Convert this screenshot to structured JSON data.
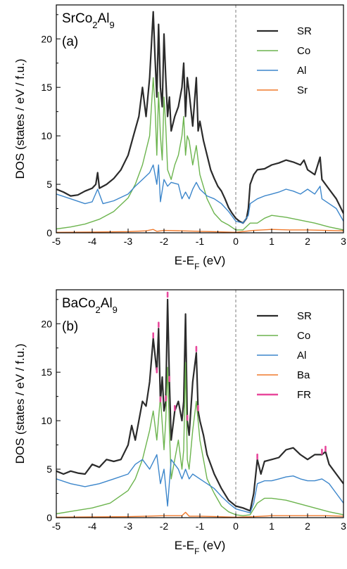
{
  "chart_data": [
    {
      "type": "line",
      "panel_label": "(a)",
      "compound": {
        "pre": "SrCo",
        "sub1": "2",
        "mid": "Al",
        "sub2": "9"
      },
      "xlabel": {
        "pre": "E-E",
        "sub": "F",
        "post": " (eV)"
      },
      "ylabel": "DOS (states / eV / f.u.)",
      "xlim": [
        -5,
        3
      ],
      "ylim": [
        0,
        23.5
      ],
      "xticks": [
        -5,
        -4,
        -3,
        -2,
        -1,
        0,
        1,
        2,
        3
      ],
      "yticks": [
        0,
        5,
        10,
        15,
        20
      ],
      "fermi_line_x": 0,
      "legend_position": "top-right",
      "series": [
        {
          "name": "SR",
          "color": "#2b2b2b",
          "width": 2.2,
          "x": [
            -5.0,
            -4.8,
            -4.6,
            -4.4,
            -4.2,
            -4.0,
            -3.9,
            -3.85,
            -3.8,
            -3.6,
            -3.4,
            -3.2,
            -3.0,
            -2.85,
            -2.7,
            -2.6,
            -2.5,
            -2.4,
            -2.3,
            -2.25,
            -2.2,
            -2.15,
            -2.1,
            -2.05,
            -2.0,
            -1.95,
            -1.9,
            -1.85,
            -1.8,
            -1.7,
            -1.6,
            -1.5,
            -1.45,
            -1.4,
            -1.35,
            -1.3,
            -1.2,
            -1.1,
            -1.05,
            -1.0,
            -0.9,
            -0.8,
            -0.7,
            -0.6,
            -0.5,
            -0.4,
            -0.3,
            -0.2,
            -0.1,
            0.0,
            0.1,
            0.2,
            0.3,
            0.35,
            0.4,
            0.5,
            0.6,
            0.8,
            1.0,
            1.2,
            1.4,
            1.6,
            1.8,
            1.9,
            2.0,
            2.2,
            2.35,
            2.4,
            2.6,
            2.8,
            3.0
          ],
          "y": [
            4.5,
            4.2,
            3.8,
            3.9,
            4.3,
            4.6,
            5.0,
            6.2,
            4.6,
            5.0,
            5.6,
            6.5,
            8.0,
            10.0,
            12.0,
            15.0,
            12.0,
            16.0,
            22.8,
            18.0,
            14.0,
            21.5,
            15.0,
            13.0,
            20.5,
            16.0,
            12.0,
            14.0,
            10.5,
            12.0,
            13.0,
            15.0,
            17.5,
            12.0,
            16.0,
            14.5,
            11.0,
            16.0,
            10.5,
            11.5,
            9.5,
            8.0,
            6.5,
            5.6,
            4.8,
            4.3,
            3.5,
            2.6,
            2.0,
            1.5,
            1.2,
            1.0,
            1.5,
            2.5,
            5.0,
            6.0,
            6.5,
            6.6,
            7.0,
            7.2,
            7.5,
            7.3,
            7.0,
            7.5,
            6.5,
            6.0,
            7.8,
            5.5,
            4.5,
            3.5,
            2.0
          ]
        },
        {
          "name": "Co",
          "color": "#6cb44e",
          "width": 1.4,
          "x": [
            -5.0,
            -4.6,
            -4.2,
            -3.8,
            -3.4,
            -3.0,
            -2.8,
            -2.6,
            -2.4,
            -2.3,
            -2.25,
            -2.2,
            -2.15,
            -2.1,
            -2.05,
            -2.0,
            -1.95,
            -1.9,
            -1.8,
            -1.7,
            -1.6,
            -1.5,
            -1.45,
            -1.4,
            -1.35,
            -1.3,
            -1.2,
            -1.1,
            -1.0,
            -0.8,
            -0.6,
            -0.4,
            -0.2,
            0.0,
            0.2,
            0.4,
            0.6,
            0.8,
            1.0,
            1.4,
            1.8,
            2.2,
            2.6,
            3.0
          ],
          "y": [
            0.4,
            0.6,
            0.9,
            1.4,
            2.2,
            3.6,
            5.0,
            7.0,
            10.0,
            16.0,
            13.0,
            8.0,
            14.5,
            10.0,
            7.5,
            14.0,
            11.0,
            6.5,
            5.5,
            7.0,
            8.0,
            10.0,
            12.0,
            8.0,
            10.0,
            9.5,
            7.0,
            9.0,
            6.0,
            3.5,
            2.0,
            1.2,
            0.8,
            0.3,
            0.3,
            1.0,
            1.0,
            1.5,
            1.8,
            1.6,
            1.3,
            1.0,
            0.6,
            0.3
          ]
        },
        {
          "name": "Al",
          "color": "#3c86cb",
          "width": 1.4,
          "x": [
            -5.0,
            -4.6,
            -4.2,
            -4.0,
            -3.85,
            -3.7,
            -3.4,
            -3.0,
            -2.8,
            -2.6,
            -2.4,
            -2.3,
            -2.2,
            -2.15,
            -2.1,
            -2.0,
            -1.9,
            -1.8,
            -1.6,
            -1.5,
            -1.4,
            -1.3,
            -1.2,
            -1.1,
            -1.0,
            -0.8,
            -0.6,
            -0.4,
            -0.2,
            0.0,
            0.2,
            0.35,
            0.4,
            0.6,
            0.8,
            1.0,
            1.2,
            1.4,
            1.6,
            1.8,
            2.0,
            2.2,
            2.35,
            2.4,
            2.6,
            2.8,
            3.0
          ],
          "y": [
            4.0,
            3.5,
            3.0,
            3.2,
            4.5,
            3.0,
            3.3,
            4.0,
            4.8,
            5.5,
            6.2,
            7.0,
            5.0,
            7.0,
            3.2,
            5.5,
            4.8,
            5.2,
            5.0,
            3.5,
            4.2,
            3.5,
            4.5,
            5.2,
            4.5,
            3.8,
            3.5,
            3.0,
            2.2,
            1.2,
            1.0,
            1.8,
            3.0,
            3.5,
            3.8,
            4.0,
            4.2,
            4.5,
            4.3,
            4.0,
            4.5,
            4.0,
            4.8,
            3.5,
            3.0,
            2.5,
            1.2
          ]
        },
        {
          "name": "Sr",
          "color": "#f07a2c",
          "width": 1.4,
          "x": [
            -5.0,
            -4.0,
            -3.0,
            -2.5,
            -2.3,
            -2.2,
            -2.0,
            -1.5,
            -1.0,
            -0.5,
            0.0,
            0.5,
            1.0,
            1.5,
            2.0,
            2.5,
            3.0
          ],
          "y": [
            0.05,
            0.08,
            0.12,
            0.2,
            0.35,
            0.15,
            0.25,
            0.2,
            0.15,
            0.1,
            0.05,
            0.25,
            0.35,
            0.3,
            0.3,
            0.25,
            0.2
          ]
        }
      ]
    },
    {
      "type": "line",
      "panel_label": "(b)",
      "compound": {
        "pre": "BaCo",
        "sub1": "2",
        "mid": "Al",
        "sub2": "9"
      },
      "xlabel": {
        "pre": "E-E",
        "sub": "F",
        "post": " (eV)"
      },
      "ylabel": "DOS (states / eV / f.u.)",
      "xlim": [
        -5,
        3
      ],
      "ylim": [
        0,
        23.5
      ],
      "xticks": [
        -5,
        -4,
        -3,
        -2,
        -1,
        0,
        1,
        2,
        3
      ],
      "yticks": [
        0,
        5,
        10,
        15,
        20
      ],
      "fermi_line_x": 0,
      "legend_position": "top-right",
      "series": [
        {
          "name": "SR",
          "color": "#2b2b2b",
          "width": 2.2,
          "x": [
            -5.0,
            -4.8,
            -4.6,
            -4.4,
            -4.2,
            -4.0,
            -3.8,
            -3.6,
            -3.4,
            -3.2,
            -3.0,
            -2.9,
            -2.8,
            -2.7,
            -2.6,
            -2.5,
            -2.4,
            -2.3,
            -2.2,
            -2.15,
            -2.1,
            -2.05,
            -2.0,
            -1.95,
            -1.9,
            -1.85,
            -1.8,
            -1.7,
            -1.6,
            -1.5,
            -1.45,
            -1.4,
            -1.35,
            -1.3,
            -1.2,
            -1.1,
            -1.05,
            -1.0,
            -0.9,
            -0.8,
            -0.6,
            -0.4,
            -0.2,
            0.0,
            0.2,
            0.4,
            0.5,
            0.6,
            0.7,
            0.8,
            1.0,
            1.2,
            1.4,
            1.6,
            1.8,
            2.0,
            2.2,
            2.4,
            2.5,
            2.6,
            2.8,
            3.0
          ],
          "y": [
            4.8,
            4.5,
            4.8,
            4.6,
            4.5,
            5.5,
            5.2,
            6.0,
            5.8,
            6.0,
            7.5,
            9.5,
            8.0,
            10.0,
            12.0,
            11.5,
            14.0,
            18.5,
            15.0,
            19.5,
            12.0,
            14.5,
            11.0,
            12.0,
            22.5,
            14.0,
            8.0,
            11.0,
            12.0,
            10.0,
            12.0,
            21.0,
            10.0,
            8.5,
            14.0,
            17.0,
            11.0,
            10.0,
            8.5,
            6.5,
            4.5,
            3.0,
            1.8,
            1.2,
            1.0,
            0.7,
            2.5,
            6.0,
            4.5,
            5.8,
            6.0,
            6.2,
            7.0,
            7.2,
            6.5,
            6.0,
            6.5,
            6.5,
            6.8,
            5.5,
            4.5,
            3.5
          ]
        },
        {
          "name": "Co",
          "color": "#6cb44e",
          "width": 1.4,
          "x": [
            -5.0,
            -4.5,
            -4.0,
            -3.5,
            -3.0,
            -2.8,
            -2.6,
            -2.4,
            -2.3,
            -2.2,
            -2.1,
            -2.0,
            -1.95,
            -1.9,
            -1.85,
            -1.8,
            -1.7,
            -1.6,
            -1.5,
            -1.45,
            -1.4,
            -1.35,
            -1.3,
            -1.2,
            -1.1,
            -1.0,
            -0.8,
            -0.6,
            -0.4,
            -0.2,
            0.0,
            0.2,
            0.4,
            0.6,
            0.8,
            1.0,
            1.4,
            1.8,
            2.2,
            2.6,
            3.0
          ],
          "y": [
            0.4,
            0.7,
            1.0,
            1.5,
            2.8,
            4.0,
            6.0,
            9.0,
            11.0,
            8.0,
            12.5,
            7.0,
            10.0,
            15.5,
            9.0,
            4.0,
            6.0,
            8.0,
            5.0,
            7.0,
            16.0,
            6.0,
            5.0,
            9.0,
            12.0,
            8.0,
            4.0,
            2.5,
            1.2,
            0.6,
            0.3,
            0.2,
            0.3,
            1.5,
            2.0,
            2.0,
            1.8,
            1.4,
            1.0,
            0.6,
            0.3
          ]
        },
        {
          "name": "Al",
          "color": "#3c86cb",
          "width": 1.4,
          "x": [
            -5.0,
            -4.6,
            -4.2,
            -3.8,
            -3.4,
            -3.0,
            -2.8,
            -2.6,
            -2.4,
            -2.2,
            -2.1,
            -2.0,
            -1.9,
            -1.8,
            -1.6,
            -1.5,
            -1.4,
            -1.3,
            -1.2,
            -1.0,
            -0.8,
            -0.6,
            -0.4,
            -0.2,
            0.0,
            0.2,
            0.4,
            0.5,
            0.6,
            0.8,
            1.0,
            1.2,
            1.4,
            1.6,
            1.8,
            2.0,
            2.2,
            2.4,
            2.6,
            2.8,
            3.0
          ],
          "y": [
            4.0,
            3.5,
            3.2,
            3.5,
            4.0,
            4.5,
            5.5,
            6.0,
            5.0,
            6.5,
            3.5,
            5.0,
            1.2,
            6.0,
            5.0,
            4.0,
            5.0,
            4.0,
            4.5,
            4.0,
            3.5,
            3.0,
            2.2,
            1.5,
            0.9,
            0.7,
            0.5,
            1.5,
            3.5,
            3.8,
            3.8,
            4.0,
            4.2,
            4.3,
            4.0,
            3.8,
            3.8,
            4.0,
            3.5,
            2.5,
            1.5
          ]
        },
        {
          "name": "Ba",
          "color": "#f07a2c",
          "width": 1.4,
          "x": [
            -5.0,
            -4.0,
            -3.0,
            -2.5,
            -2.0,
            -1.5,
            -1.4,
            -1.3,
            -1.0,
            -0.5,
            0.0,
            0.5,
            1.0,
            1.5,
            2.0,
            2.5,
            3.0
          ],
          "y": [
            0.05,
            0.08,
            0.1,
            0.15,
            0.2,
            0.2,
            0.55,
            0.15,
            0.15,
            0.1,
            0.05,
            0.1,
            0.2,
            0.2,
            0.2,
            0.2,
            0.15
          ]
        },
        {
          "name": "FR",
          "color": "#e8489c",
          "width": 2.4,
          "x": [
            -2.3,
            -2.2,
            -2.15,
            -2.1,
            -1.95,
            -1.9,
            -1.85,
            -1.7,
            -1.35,
            -1.1,
            -1.05,
            0.6,
            2.4,
            2.5
          ],
          "y": [
            18.8,
            15.2,
            19.9,
            12.2,
            12.3,
            23.0,
            14.3,
            11.3,
            10.3,
            17.4,
            11.3,
            6.3,
            6.8,
            7.1
          ]
        }
      ]
    }
  ]
}
